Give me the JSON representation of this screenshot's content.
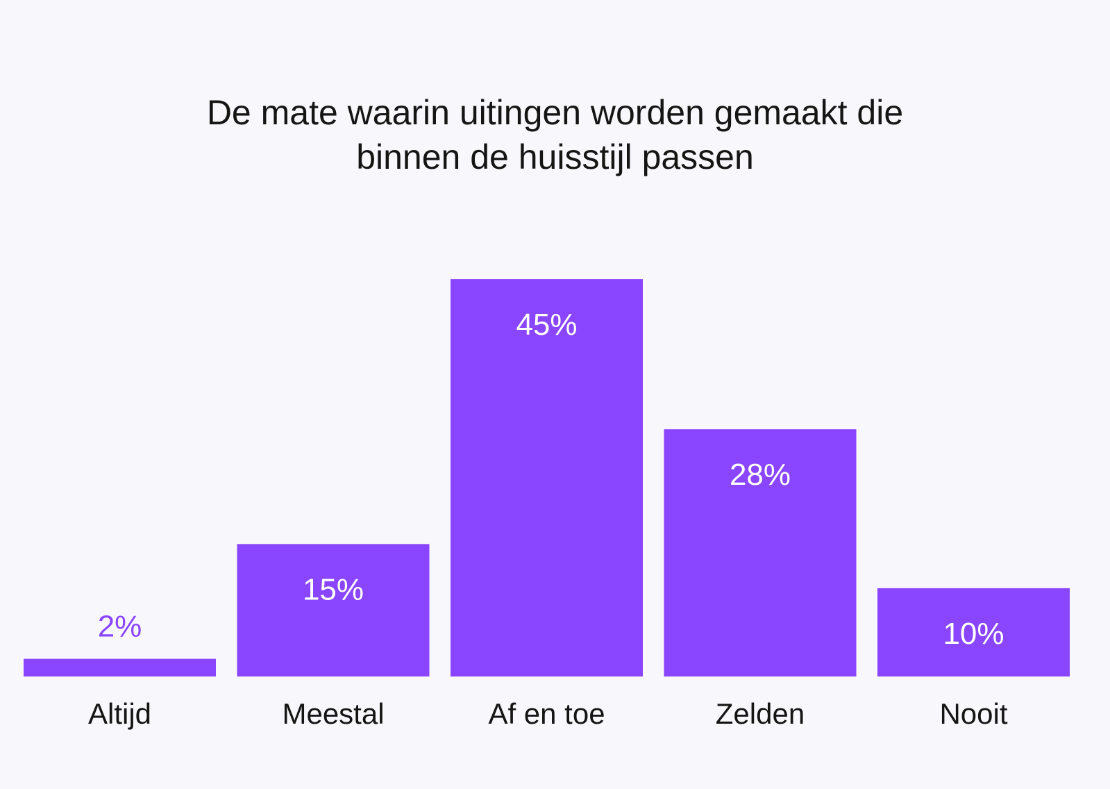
{
  "title_lines": [
    "De mate waarin uitingen worden gemaakt die",
    "binnen de huisstijl passen"
  ],
  "colors": {
    "bar": "#8a45ff",
    "label_inside": "#ffffff",
    "label_outside": "#8a45ff",
    "category_text": "#151515",
    "background": "#f8f7fb"
  },
  "chart_data": {
    "type": "bar",
    "title": "De mate waarin uitingen worden gemaakt die binnen de huisstijl passen",
    "categories": [
      "Altijd",
      "Meestal",
      "Af en toe",
      "Zelden",
      "Nooit"
    ],
    "values": [
      2,
      15,
      45,
      28,
      10
    ],
    "value_labels": [
      "2%",
      "15%",
      "45%",
      "28%",
      "10%"
    ],
    "ylim": [
      0,
      45
    ],
    "grid": false,
    "legend": "none"
  }
}
